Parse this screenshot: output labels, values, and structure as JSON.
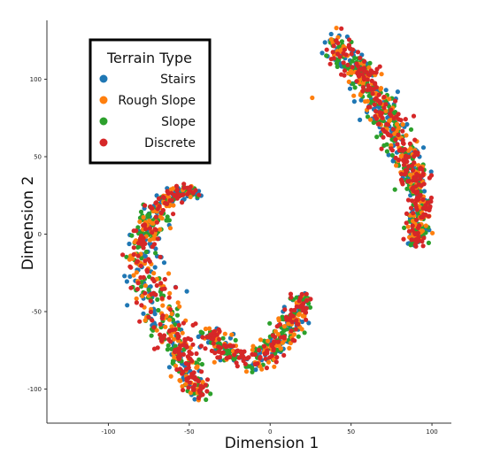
{
  "chart_data": {
    "type": "scatter",
    "title": "",
    "xlabel": "Dimension 1",
    "ylabel": "Dimension 2",
    "xlim": [
      -138,
      112
    ],
    "ylim": [
      -122,
      138
    ],
    "xticks": [
      -100,
      -50,
      0,
      50,
      100
    ],
    "yticks": [
      -100,
      -50,
      0,
      50,
      100
    ],
    "grid": false,
    "legend": {
      "title": "Terrain Type",
      "placement": "top-left"
    },
    "series": [
      {
        "name": "Stairs",
        "color": "#1f77b4",
        "count": 430
      },
      {
        "name": "Rough Slope",
        "color": "#ff7f0e",
        "count": 370
      },
      {
        "name": "Slope",
        "color": "#2ca02c",
        "count": 470
      },
      {
        "name": "Discrete",
        "color": "#d62728",
        "count": 560
      }
    ],
    "clusters": [
      {
        "name": "upper-right band",
        "path": [
          [
            37,
            124
          ],
          [
            44,
            120
          ],
          [
            50,
            112
          ],
          [
            57,
            103
          ],
          [
            63,
            92
          ],
          [
            68,
            82
          ],
          [
            74,
            72
          ],
          [
            79,
            62
          ],
          [
            84,
            50
          ],
          [
            88,
            38
          ],
          [
            91,
            26
          ],
          [
            93,
            14
          ],
          [
            92,
            2
          ],
          [
            89,
            -6
          ]
        ],
        "width": [
          9,
          9,
          10,
          11,
          11,
          11,
          11,
          10,
          10,
          10,
          9,
          9,
          8,
          6
        ]
      },
      {
        "name": "lower-left arc",
        "path": [
          [
            -40,
            -106
          ],
          [
            -49,
            -93
          ],
          [
            -54,
            -80
          ],
          [
            -61,
            -64
          ],
          [
            -68,
            -50
          ],
          [
            -75,
            -35
          ],
          [
            -80,
            -20
          ],
          [
            -79,
            -5
          ],
          [
            -73,
            10
          ],
          [
            -64,
            22
          ],
          [
            -55,
            28
          ],
          [
            -44,
            26
          ]
        ],
        "width": [
          6,
          9,
          11,
          13,
          14,
          14,
          13,
          11,
          9,
          7,
          5,
          4
        ]
      },
      {
        "name": "lower-middle wing",
        "path": [
          [
            -40,
            -62
          ],
          [
            -30,
            -72
          ],
          [
            -20,
            -80
          ],
          [
            -8,
            -82
          ],
          [
            2,
            -74
          ],
          [
            10,
            -62
          ],
          [
            16,
            -50
          ],
          [
            21,
            -40
          ]
        ],
        "width": [
          10,
          9,
          8,
          9,
          10,
          10,
          9,
          6
        ]
      }
    ]
  }
}
